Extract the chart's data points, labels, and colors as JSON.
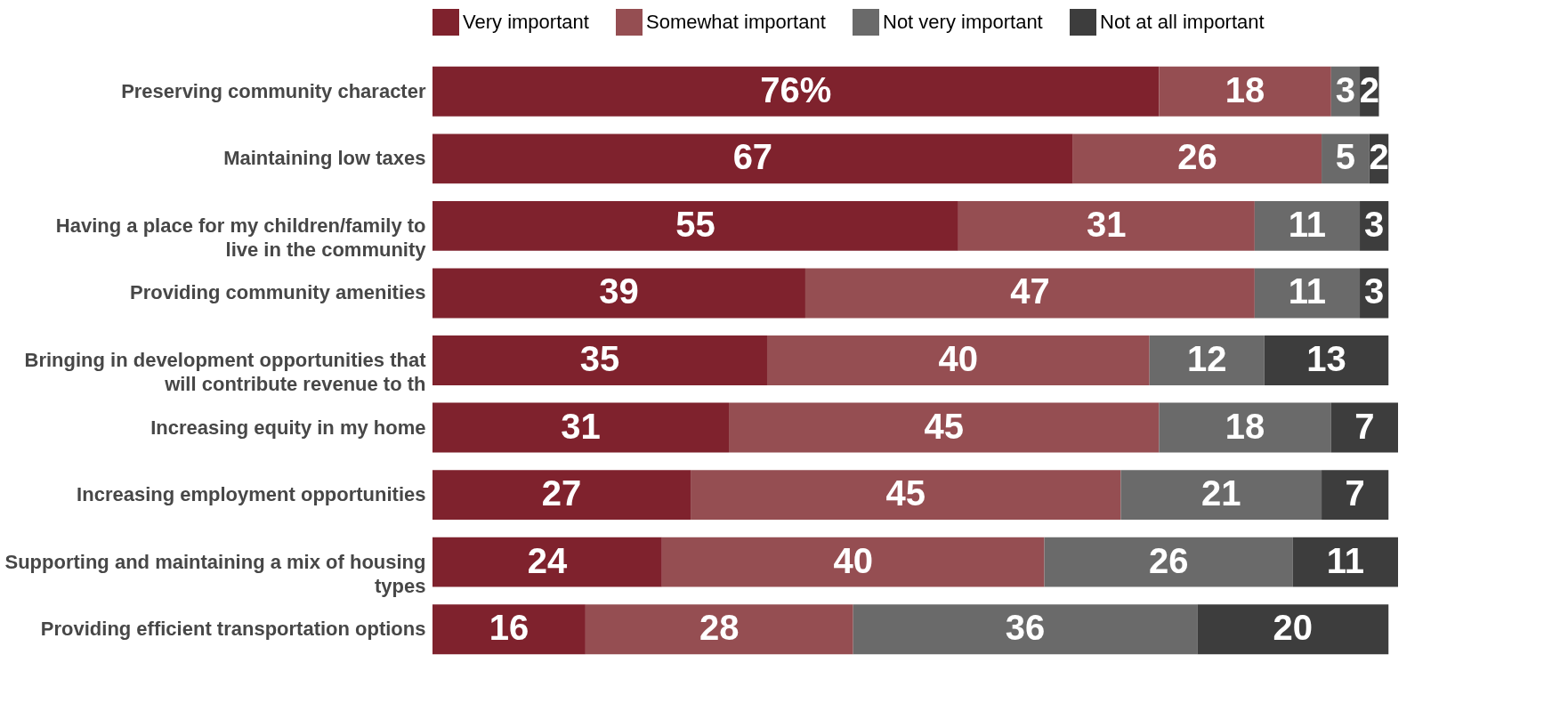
{
  "chart_data": {
    "type": "bar",
    "orientation": "horizontal",
    "stacked": true,
    "categories": [
      "Preserving community character",
      "Maintaining low taxes",
      "Having a place for my children/family to\nlive in the community",
      "Providing community amenities",
      "Bringing in development opportunities that\nwill contribute revenue to th",
      "Increasing equity in my home",
      "Increasing employment opportunities",
      "Supporting and maintaining a mix of housing\ntypes",
      "Providing efficient transportation options"
    ],
    "series": [
      {
        "name": "Very important",
        "color": "#7f222d",
        "values": [
          76,
          67,
          55,
          39,
          35,
          31,
          27,
          24,
          16
        ],
        "value_labels": [
          "76%",
          "67",
          "55",
          "39",
          "35",
          "31",
          "27",
          "24",
          "16"
        ]
      },
      {
        "name": "Somewhat important",
        "color": "#954e52",
        "values": [
          18,
          26,
          31,
          47,
          40,
          45,
          45,
          40,
          28
        ],
        "value_labels": [
          "18",
          "26",
          "31",
          "47",
          "40",
          "45",
          "45",
          "40",
          "28"
        ]
      },
      {
        "name": "Not very important",
        "color": "#6a6a6a",
        "values": [
          3,
          5,
          11,
          11,
          12,
          18,
          21,
          26,
          36
        ],
        "value_labels": [
          "3",
          "5",
          "11",
          "11",
          "12",
          "18",
          "21",
          "26",
          "36"
        ]
      },
      {
        "name": "Not at all important",
        "color": "#3d3d3d",
        "values": [
          2,
          2,
          3,
          3,
          13,
          7,
          7,
          11,
          20
        ],
        "value_labels": [
          "2",
          "2",
          "3",
          "3",
          "13",
          "7",
          "7",
          "11",
          "20"
        ]
      }
    ],
    "xlim": [
      0,
      101
    ],
    "tick_labels": "y",
    "legend": "top"
  }
}
